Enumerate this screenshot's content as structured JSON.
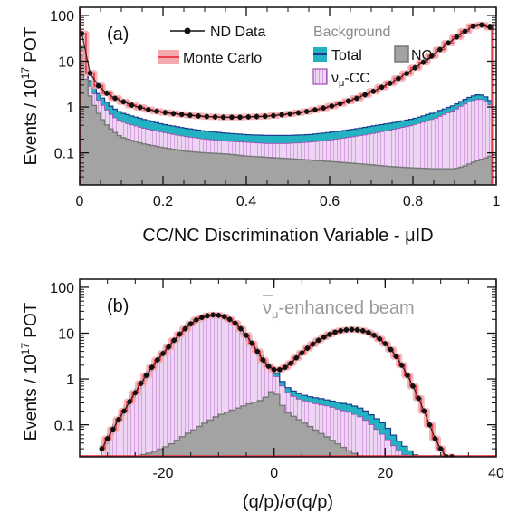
{
  "colors": {
    "data": "#111111",
    "mc": "#e8414b",
    "mc_band": "#f3a9ad",
    "total": "#22b2c2",
    "total_line": "#1a3d8f",
    "numu_fill": "#e7c9ef",
    "numu_line": "#a24bb3",
    "nc_fill": "#a3a3a3",
    "nc_line": "#777777",
    "beam_text": "#9a9a9a"
  },
  "chart_data": [
    {
      "type": "histogram",
      "panel_label": "(a)",
      "xlabel": "CC/NC Discrimination Variable - μID",
      "ylabel": "Events / 10¹⁷ POT",
      "ylabel_parts": {
        "main": "Events / 10",
        "exp": "17",
        "tail": " POT"
      },
      "xlim": [
        0,
        1
      ],
      "ylim": [
        0.02,
        150
      ],
      "yscale": "log",
      "x_ticks": [
        0,
        0.2,
        0.4,
        0.6,
        0.8,
        1
      ],
      "x_tick_labels": [
        "0",
        "0.2",
        "0.4",
        "0.6",
        "0.8",
        "1"
      ],
      "y_ticks": [
        0.1,
        1,
        10,
        100
      ],
      "y_tick_labels": [
        "0.1",
        "1",
        "10",
        "100"
      ],
      "bin_width": 0.01,
      "legend": {
        "data": "ND Data",
        "mc": "Monte Carlo",
        "background_title": "Background",
        "total": "Total",
        "nc": "NC",
        "numu_cc": "ν_μ-CC"
      },
      "data_points": {
        "x": [
          0.005,
          0.025,
          0.045,
          0.065,
          0.085,
          0.105,
          0.125,
          0.145,
          0.165,
          0.185,
          0.205,
          0.225,
          0.245,
          0.265,
          0.285,
          0.305,
          0.325,
          0.345,
          0.365,
          0.385,
          0.405,
          0.425,
          0.445,
          0.465,
          0.485,
          0.505,
          0.525,
          0.545,
          0.565,
          0.585,
          0.605,
          0.625,
          0.645,
          0.665,
          0.685,
          0.705,
          0.725,
          0.745,
          0.765,
          0.785,
          0.805,
          0.825,
          0.845,
          0.865,
          0.885,
          0.905,
          0.925,
          0.945,
          0.965,
          0.985
        ],
        "y": [
          40,
          5.5,
          2.9,
          2.0,
          1.55,
          1.3,
          1.1,
          0.98,
          0.88,
          0.81,
          0.76,
          0.72,
          0.69,
          0.66,
          0.64,
          0.62,
          0.61,
          0.6,
          0.6,
          0.6,
          0.61,
          0.62,
          0.63,
          0.65,
          0.68,
          0.71,
          0.75,
          0.8,
          0.87,
          0.95,
          1.05,
          1.18,
          1.35,
          1.55,
          1.85,
          2.2,
          2.7,
          3.3,
          4.2,
          5.4,
          7.2,
          9.5,
          13,
          18,
          25,
          34,
          45,
          58,
          62,
          55
        ]
      },
      "background_x": [
        0.0,
        0.02,
        0.04,
        0.06,
        0.08,
        0.1,
        0.15,
        0.2,
        0.25,
        0.3,
        0.35,
        0.4,
        0.45,
        0.5,
        0.55,
        0.6,
        0.65,
        0.7,
        0.75,
        0.8,
        0.85,
        0.9,
        0.92,
        0.94,
        0.96,
        0.98,
        0.99
      ],
      "total_bkg": [
        35,
        4.5,
        2.2,
        1.4,
        0.95,
        0.75,
        0.55,
        0.42,
        0.35,
        0.3,
        0.27,
        0.25,
        0.24,
        0.24,
        0.25,
        0.28,
        0.32,
        0.38,
        0.45,
        0.55,
        0.75,
        1.1,
        1.4,
        1.7,
        1.9,
        1.6,
        1.2
      ],
      "numu_cc_bkg": [
        28,
        3.4,
        1.6,
        0.95,
        0.62,
        0.48,
        0.35,
        0.28,
        0.23,
        0.2,
        0.18,
        0.17,
        0.16,
        0.16,
        0.17,
        0.19,
        0.22,
        0.26,
        0.32,
        0.4,
        0.55,
        0.85,
        1.1,
        1.35,
        1.5,
        1.3,
        0.95
      ],
      "nc_bkg": [
        25,
        2.2,
        0.85,
        0.45,
        0.3,
        0.22,
        0.16,
        0.13,
        0.11,
        0.1,
        0.095,
        0.085,
        0.08,
        0.075,
        0.07,
        0.065,
        0.06,
        0.055,
        0.05,
        0.047,
        0.045,
        0.045,
        0.05,
        0.06,
        0.07,
        0.08,
        0.09
      ]
    },
    {
      "type": "histogram",
      "panel_label": "(b)",
      "annotation": "ν̄_μ-enhanced beam",
      "xlabel": "(q/p)/σ(q/p)",
      "ylabel": "Events / 10¹⁷ POT",
      "ylabel_parts": {
        "main": "Events / 10",
        "exp": "17",
        "tail": " POT"
      },
      "xlim": [
        -35,
        40
      ],
      "ylim": [
        0.02,
        150
      ],
      "yscale": "log",
      "x_ticks": [
        -20,
        0,
        20,
        40
      ],
      "x_tick_labels": [
        "-20",
        "0",
        "20",
        "40"
      ],
      "y_ticks": [
        0.1,
        1,
        10,
        100
      ],
      "y_tick_labels": [
        "0.1",
        "1",
        "10",
        "100"
      ],
      "bin_width": 1,
      "data_points": {
        "x": [
          -31,
          -30,
          -29,
          -28,
          -27,
          -26,
          -25,
          -24,
          -23,
          -22,
          -21,
          -20,
          -19,
          -18,
          -17,
          -16,
          -15,
          -14,
          -13,
          -12,
          -11,
          -10,
          -9,
          -8,
          -7,
          -6,
          -5,
          -4,
          -3,
          -2,
          -1,
          0,
          1,
          2,
          3,
          4,
          5,
          6,
          7,
          8,
          9,
          10,
          11,
          12,
          13,
          14,
          15,
          16,
          17,
          18,
          19,
          20,
          21,
          22,
          23,
          24,
          25,
          26,
          27,
          28,
          29,
          30,
          31,
          32
        ],
        "y": [
          0.03,
          0.05,
          0.08,
          0.13,
          0.2,
          0.32,
          0.5,
          0.8,
          1.2,
          1.8,
          2.6,
          3.6,
          5.0,
          7.0,
          9.5,
          12.5,
          16,
          19.5,
          22,
          24,
          25,
          24.5,
          23,
          20,
          16.5,
          12.5,
          9,
          6,
          4,
          2.6,
          1.9,
          1.6,
          1.6,
          1.8,
          2.2,
          2.9,
          3.7,
          4.7,
          5.8,
          7.0,
          8.2,
          9.4,
          10.5,
          11.3,
          11.8,
          12.0,
          11.8,
          11.3,
          10.3,
          9.0,
          7.5,
          5.9,
          4.4,
          3.1,
          2.0,
          1.2,
          0.7,
          0.38,
          0.2,
          0.1,
          0.05,
          0.03,
          0.02,
          0.02
        ]
      },
      "background_x": [
        -31,
        -28,
        -25,
        -22,
        -19,
        -16,
        -13,
        -10,
        -7,
        -4,
        -2,
        0,
        1,
        2,
        4,
        6,
        8,
        10,
        12,
        14,
        16,
        18,
        20,
        22,
        24,
        26
      ],
      "total_bkg": [
        0.03,
        0.13,
        0.5,
        1.8,
        5.0,
        12.5,
        22,
        24.5,
        16.5,
        6,
        2.6,
        1.6,
        1.1,
        0.7,
        0.5,
        0.42,
        0.38,
        0.34,
        0.3,
        0.27,
        0.22,
        0.15,
        0.1,
        0.05,
        0.03,
        0.02
      ],
      "numu_cc_bkg": [
        0.03,
        0.13,
        0.5,
        1.8,
        5.0,
        12.5,
        22,
        24.5,
        16.5,
        6,
        2.6,
        1.4,
        0.9,
        0.55,
        0.38,
        0.32,
        0.28,
        0.25,
        0.21,
        0.18,
        0.14,
        0.09,
        0.055,
        0.03,
        0.02,
        0.02
      ],
      "nc_bkg": [
        0.02,
        0.02,
        0.02,
        0.025,
        0.035,
        0.06,
        0.1,
        0.16,
        0.22,
        0.3,
        0.35,
        0.6,
        0.35,
        0.2,
        0.14,
        0.1,
        0.07,
        0.05,
        0.035,
        0.025,
        0.02,
        0.02,
        0.02,
        0.02,
        0.02,
        0.02
      ]
    }
  ]
}
